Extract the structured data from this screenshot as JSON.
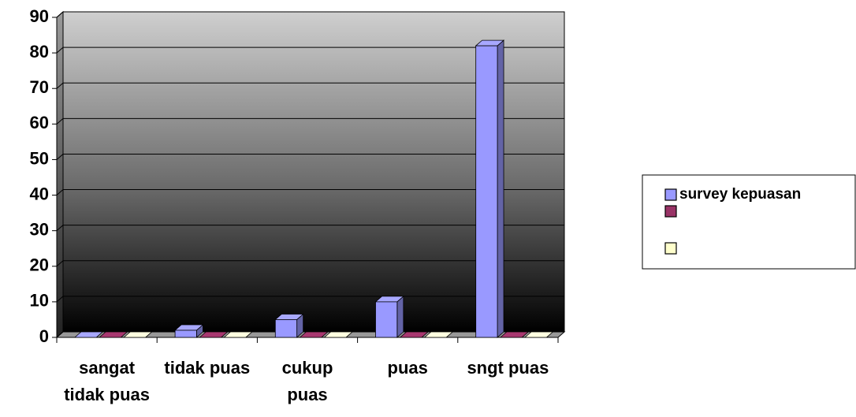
{
  "chart_data": {
    "type": "bar3d",
    "categories": [
      "sangat tidak puas",
      "tidak puas",
      "cukup puas",
      "puas",
      "sngt puas"
    ],
    "series": [
      {
        "name": "survey kepuasan",
        "color": "#9999ff",
        "values": [
          0,
          2,
          5,
          10,
          82
        ]
      },
      {
        "color": "#993366",
        "values": [
          0,
          0,
          0,
          0,
          0
        ]
      },
      {
        "color": "#ffffcc",
        "values": [
          0,
          0,
          0,
          0,
          0
        ]
      }
    ],
    "ylim": [
      0,
      90
    ],
    "yticks": [
      0,
      10,
      20,
      30,
      40,
      50,
      60,
      70,
      80,
      90
    ],
    "grid": true,
    "legend": "right"
  }
}
